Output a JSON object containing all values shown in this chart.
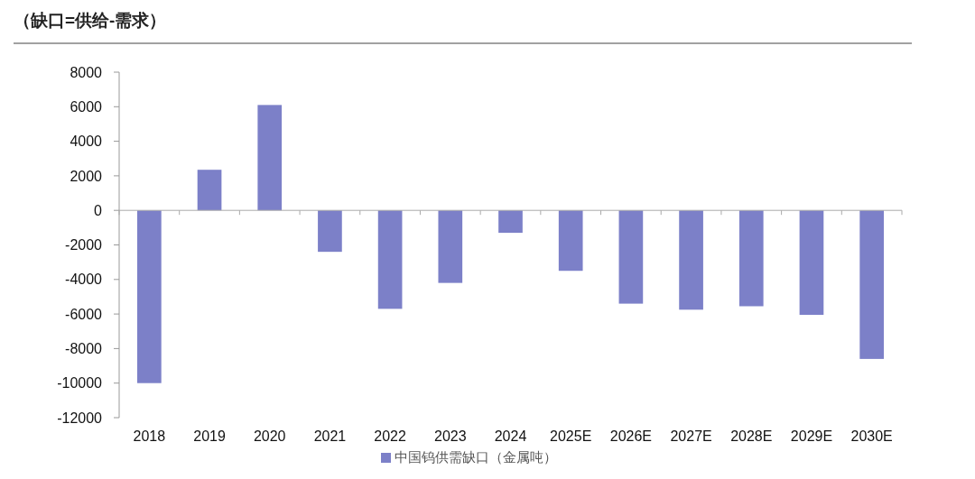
{
  "chart_data": {
    "type": "bar",
    "title": "（缺口=供给-需求）",
    "categories": [
      "2018",
      "2019",
      "2020",
      "2021",
      "2022",
      "2023",
      "2024",
      "2025E",
      "2026E",
      "2027E",
      "2028E",
      "2029E",
      "2030E"
    ],
    "series": [
      {
        "name": "中国钨供需缺口（金属吨）",
        "color": "#7c80c8",
        "values": [
          -10000,
          2350,
          6100,
          -2400,
          -5700,
          -4200,
          -1300,
          -3500,
          -5400,
          -5750,
          -5550,
          -6050,
          -8600
        ]
      }
    ],
    "ylim": [
      -12000,
      8000
    ],
    "yticks": [
      -12000,
      -10000,
      -8000,
      -6000,
      -4000,
      -2000,
      0,
      2000,
      4000,
      6000,
      8000
    ],
    "legend": "bottom"
  }
}
